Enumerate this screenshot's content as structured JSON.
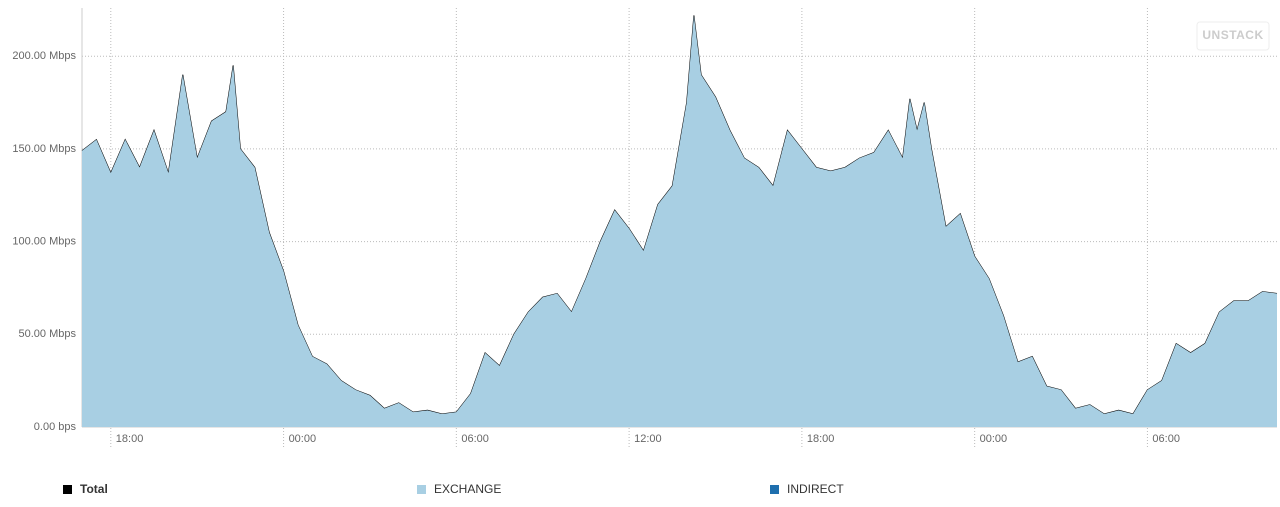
{
  "chart_data": {
    "type": "area",
    "x": [
      -1,
      -0.5,
      0,
      0.5,
      1,
      1.5,
      2,
      2.5,
      3,
      3.5,
      4,
      4.25,
      4.5,
      5,
      5.5,
      6,
      6.5,
      7,
      7.5,
      8,
      8.5,
      9,
      9.5,
      10,
      10.5,
      11,
      11.5,
      12,
      12.5,
      13,
      13.5,
      14,
      14.5,
      15,
      15.5,
      16,
      16.5,
      17,
      17.5,
      18,
      18.5,
      19,
      19.5,
      20,
      20.25,
      20.5,
      21,
      21.5,
      22,
      22.5,
      23,
      23.5,
      24,
      24.5,
      25,
      25.5,
      26,
      26.5,
      27,
      27.5,
      27.75,
      28,
      28.25,
      28.5,
      29,
      29.5,
      30,
      30.5,
      31,
      31.5,
      32,
      32.5,
      33,
      33.5,
      34,
      34.5,
      35,
      35.5,
      36,
      36.5,
      37,
      37.5,
      38,
      38.5,
      39,
      39.5,
      40,
      40.5
    ],
    "series": [
      {
        "name": "Total",
        "color": "#000000",
        "values": [
          149,
          155,
          137,
          155,
          140,
          160,
          137,
          190,
          145,
          165,
          170,
          195,
          150,
          140,
          105,
          84,
          55,
          38,
          34,
          25,
          20,
          17,
          10,
          13,
          8,
          9,
          7,
          8,
          18,
          40,
          33,
          50,
          62,
          70,
          72,
          62,
          80,
          100,
          117,
          107,
          95,
          120,
          130,
          175,
          222,
          190,
          178,
          160,
          145,
          140,
          130,
          160,
          150,
          140,
          138,
          140,
          145,
          148,
          160,
          145,
          177,
          160,
          175,
          150,
          108,
          115,
          92,
          80,
          60,
          35,
          38,
          22,
          20,
          10,
          12,
          7,
          9,
          7,
          20,
          25,
          45,
          40,
          45,
          62,
          68,
          68,
          73,
          72
        ]
      },
      {
        "name": "EXCHANGE",
        "color": "#a8cfe3",
        "values": [
          149,
          155,
          137,
          155,
          140,
          160,
          137,
          190,
          145,
          165,
          170,
          195,
          150,
          140,
          105,
          84,
          55,
          38,
          34,
          25,
          20,
          17,
          10,
          13,
          8,
          9,
          7,
          8,
          18,
          40,
          33,
          50,
          62,
          70,
          72,
          62,
          80,
          100,
          117,
          107,
          95,
          120,
          130,
          175,
          222,
          190,
          178,
          160,
          145,
          140,
          130,
          160,
          150,
          140,
          138,
          140,
          145,
          148,
          160,
          145,
          177,
          160,
          175,
          150,
          108,
          115,
          92,
          80,
          60,
          35,
          38,
          22,
          20,
          10,
          12,
          7,
          9,
          7,
          20,
          25,
          45,
          40,
          45,
          62,
          68,
          68,
          73,
          72
        ]
      },
      {
        "name": "INDIRECT",
        "color": "#1f6fae",
        "values": [
          0,
          0,
          0,
          0,
          0,
          0,
          0,
          0,
          0,
          0,
          0,
          0,
          0,
          0,
          0,
          0,
          0,
          0,
          0,
          0,
          0,
          0,
          0,
          0,
          0,
          0,
          0,
          0,
          0,
          0,
          0,
          0,
          0,
          0,
          0,
          0,
          0,
          0,
          0,
          0,
          0,
          0,
          0,
          0,
          0,
          0,
          0,
          0,
          0,
          0,
          0,
          0,
          0,
          0,
          0,
          0,
          0,
          0,
          0,
          0,
          0,
          0,
          0,
          0,
          0,
          0,
          0,
          0,
          0,
          0,
          0,
          0,
          0,
          0,
          0,
          0,
          0,
          0,
          0,
          0,
          0,
          0,
          0,
          0,
          0,
          0,
          0,
          0
        ]
      }
    ],
    "xlim": [
      -1,
      40.5
    ],
    "xticks": [
      {
        "value": 0,
        "label": "18:00"
      },
      {
        "value": 6,
        "label": "00:00"
      },
      {
        "value": 12,
        "label": "06:00"
      },
      {
        "value": 18,
        "label": "12:00"
      },
      {
        "value": 24,
        "label": "18:00"
      },
      {
        "value": 30,
        "label": "00:00"
      },
      {
        "value": 36,
        "label": "06:00"
      }
    ],
    "ylim": [
      0,
      226
    ],
    "yticks": [
      {
        "value": 0,
        "label": "0.00 bps"
      },
      {
        "value": 50,
        "label": "50.00 Mbps"
      },
      {
        "value": 100,
        "label": "100.00 Mbps"
      },
      {
        "value": 150,
        "label": "150.00 Mbps"
      },
      {
        "value": 200,
        "label": "200.00 Mbps"
      }
    ],
    "grid": true,
    "button": "UNSTACK"
  }
}
